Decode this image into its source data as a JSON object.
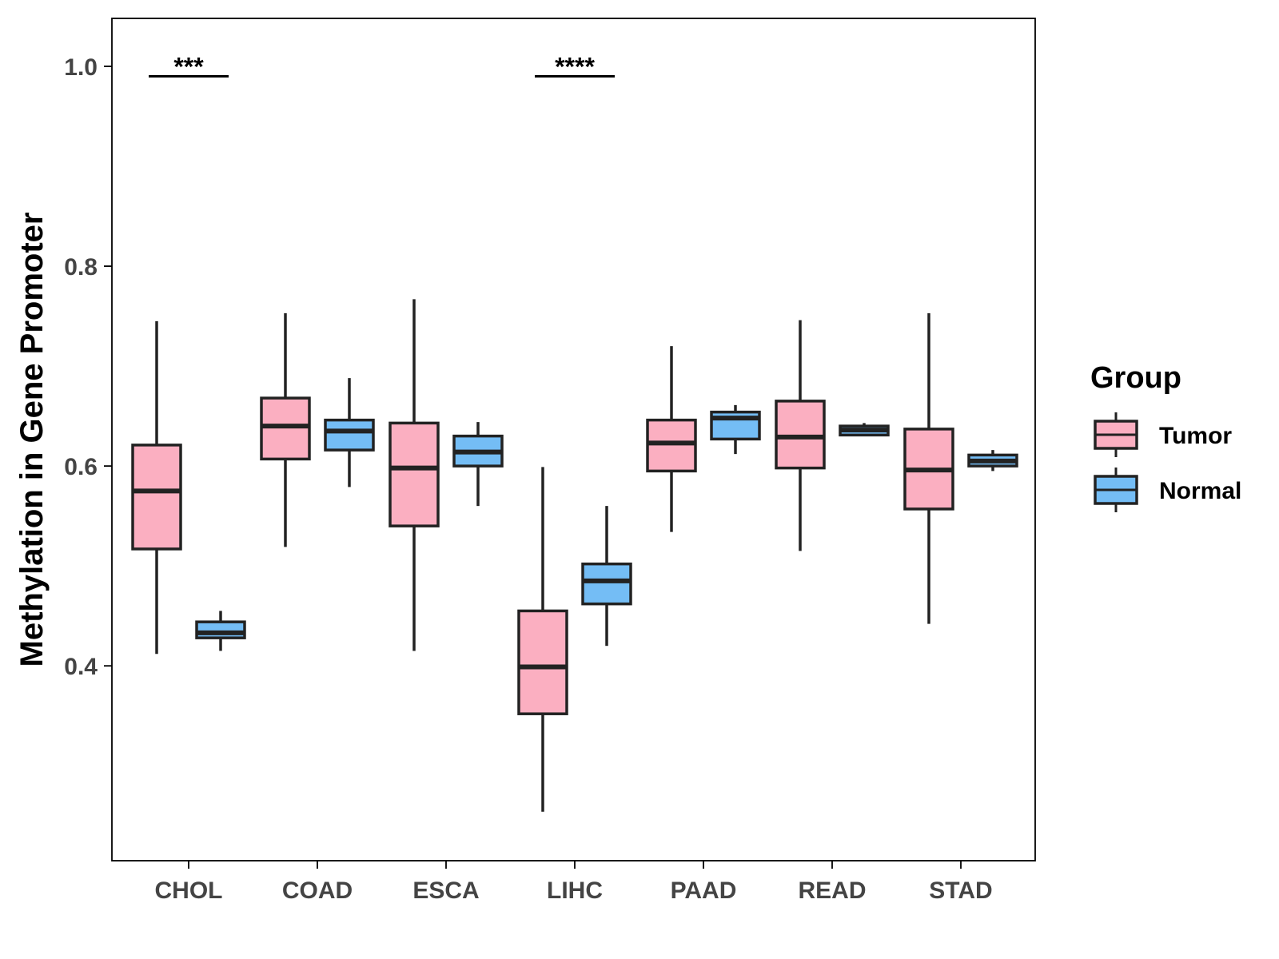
{
  "chart_data": {
    "type": "boxplot",
    "title": "",
    "xlabel": "",
    "ylabel": "Methylation in Gene Promoter",
    "ylim": [
      0.205,
      1.048
    ],
    "yticks": [
      0.4,
      0.6,
      0.8,
      1.0
    ],
    "ytick_labels": [
      "0.4",
      "0.6",
      "0.8",
      "1.0"
    ],
    "grid": false,
    "categories": [
      "CHOL",
      "COAD",
      "ESCA",
      "LIHC",
      "PAAD",
      "READ",
      "STAD"
    ],
    "legend": {
      "title": "Group",
      "position": "right",
      "entries": [
        {
          "name": "Tumor",
          "color": "#FBAFC1"
        },
        {
          "name": "Normal",
          "color": "#74BDF5"
        }
      ]
    },
    "series": [
      {
        "name": "Tumor",
        "color": "#FBAFC1",
        "boxes": [
          {
            "category": "CHOL",
            "min": 0.412,
            "q1": 0.517,
            "median": 0.575,
            "q3": 0.621,
            "max": 0.745
          },
          {
            "category": "COAD",
            "min": 0.519,
            "q1": 0.607,
            "median": 0.64,
            "q3": 0.668,
            "max": 0.753
          },
          {
            "category": "ESCA",
            "min": 0.415,
            "q1": 0.54,
            "median": 0.598,
            "q3": 0.643,
            "max": 0.767
          },
          {
            "category": "LIHC",
            "min": 0.254,
            "q1": 0.352,
            "median": 0.399,
            "q3": 0.455,
            "max": 0.599
          },
          {
            "category": "PAAD",
            "min": 0.534,
            "q1": 0.595,
            "median": 0.623,
            "q3": 0.646,
            "max": 0.72
          },
          {
            "category": "READ",
            "min": 0.515,
            "q1": 0.598,
            "median": 0.629,
            "q3": 0.665,
            "max": 0.746
          },
          {
            "category": "STAD",
            "min": 0.442,
            "q1": 0.557,
            "median": 0.596,
            "q3": 0.637,
            "max": 0.753
          }
        ]
      },
      {
        "name": "Normal",
        "color": "#74BDF5",
        "boxes": [
          {
            "category": "CHOL",
            "min": 0.415,
            "q1": 0.428,
            "median": 0.433,
            "q3": 0.444,
            "max": 0.455
          },
          {
            "category": "COAD",
            "min": 0.579,
            "q1": 0.616,
            "median": 0.635,
            "q3": 0.646,
            "max": 0.688
          },
          {
            "category": "ESCA",
            "min": 0.56,
            "q1": 0.6,
            "median": 0.614,
            "q3": 0.63,
            "max": 0.644
          },
          {
            "category": "LIHC",
            "min": 0.42,
            "q1": 0.462,
            "median": 0.485,
            "q3": 0.502,
            "max": 0.56
          },
          {
            "category": "PAAD",
            "min": 0.612,
            "q1": 0.627,
            "median": 0.648,
            "q3": 0.654,
            "max": 0.661
          },
          {
            "category": "READ",
            "min": 0.63,
            "q1": 0.631,
            "median": 0.636,
            "q3": 0.64,
            "max": 0.643
          },
          {
            "category": "STAD",
            "min": 0.595,
            "q1": 0.6,
            "median": 0.605,
            "q3": 0.611,
            "max": 0.616
          }
        ]
      }
    ],
    "annotations": [
      {
        "category": "CHOL",
        "label": "***",
        "y": 0.99
      },
      {
        "category": "LIHC",
        "label": "****",
        "y": 0.99
      }
    ]
  }
}
